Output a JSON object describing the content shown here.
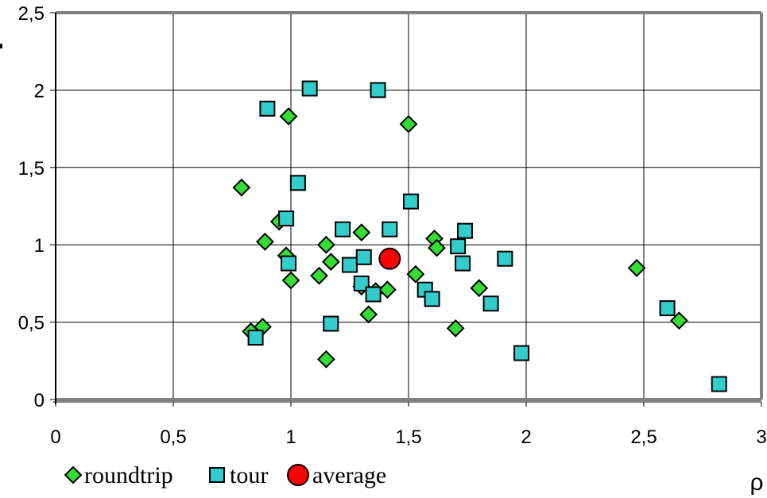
{
  "chart_data": {
    "type": "scatter",
    "title": "",
    "xlabel": "ρ",
    "ylabel": "",
    "xlim": [
      0,
      3
    ],
    "ylim": [
      0,
      2.5
    ],
    "x_ticks": [
      0,
      0.5,
      1,
      1.5,
      2,
      2.5,
      3
    ],
    "y_ticks": [
      0,
      0.5,
      1,
      1.5,
      2,
      2.5
    ],
    "x_tick_labels": [
      "0",
      "0,5",
      "1",
      "1,5",
      "2",
      "2,5",
      "3"
    ],
    "y_tick_labels": [
      "0",
      "0,5",
      "1",
      "1,5",
      "2",
      "2,5"
    ],
    "grid": true,
    "legend_position": "bottom-left",
    "series": [
      {
        "name": "roundtrip",
        "marker": "diamond",
        "color": "#33dd33",
        "points": [
          [
            0.79,
            1.37
          ],
          [
            0.99,
            1.83
          ],
          [
            1.5,
            1.78
          ],
          [
            0.95,
            1.15
          ],
          [
            0.89,
            1.02
          ],
          [
            0.98,
            0.93
          ],
          [
            1.0,
            0.77
          ],
          [
            1.12,
            0.8
          ],
          [
            1.15,
            1.0
          ],
          [
            1.17,
            0.89
          ],
          [
            1.3,
            1.08
          ],
          [
            1.3,
            0.73
          ],
          [
            1.36,
            0.7
          ],
          [
            1.41,
            0.71
          ],
          [
            1.33,
            0.55
          ],
          [
            1.53,
            0.81
          ],
          [
            1.61,
            1.04
          ],
          [
            1.62,
            0.98
          ],
          [
            1.8,
            0.72
          ],
          [
            1.7,
            0.46
          ],
          [
            0.83,
            0.44
          ],
          [
            0.88,
            0.47
          ],
          [
            1.15,
            0.26
          ],
          [
            2.47,
            0.85
          ],
          [
            2.65,
            0.51
          ]
        ]
      },
      {
        "name": "tour",
        "marker": "square",
        "color": "#33cccc",
        "points": [
          [
            0.9,
            1.88
          ],
          [
            1.08,
            2.01
          ],
          [
            1.37,
            2.0
          ],
          [
            1.03,
            1.4
          ],
          [
            1.51,
            1.28
          ],
          [
            0.98,
            1.17
          ],
          [
            1.22,
            1.1
          ],
          [
            1.42,
            1.1
          ],
          [
            1.74,
            1.09
          ],
          [
            1.71,
            0.99
          ],
          [
            1.73,
            0.88
          ],
          [
            1.91,
            0.91
          ],
          [
            0.99,
            0.88
          ],
          [
            1.25,
            0.87
          ],
          [
            1.31,
            0.92
          ],
          [
            1.3,
            0.75
          ],
          [
            1.35,
            0.68
          ],
          [
            1.57,
            0.71
          ],
          [
            1.6,
            0.65
          ],
          [
            1.85,
            0.62
          ],
          [
            1.17,
            0.49
          ],
          [
            0.85,
            0.4
          ],
          [
            1.98,
            0.3
          ],
          [
            2.6,
            0.59
          ],
          [
            2.82,
            0.1
          ]
        ]
      },
      {
        "name": "average",
        "marker": "circle",
        "color": "#ff0000",
        "points": [
          [
            1.42,
            0.91
          ]
        ]
      }
    ]
  }
}
